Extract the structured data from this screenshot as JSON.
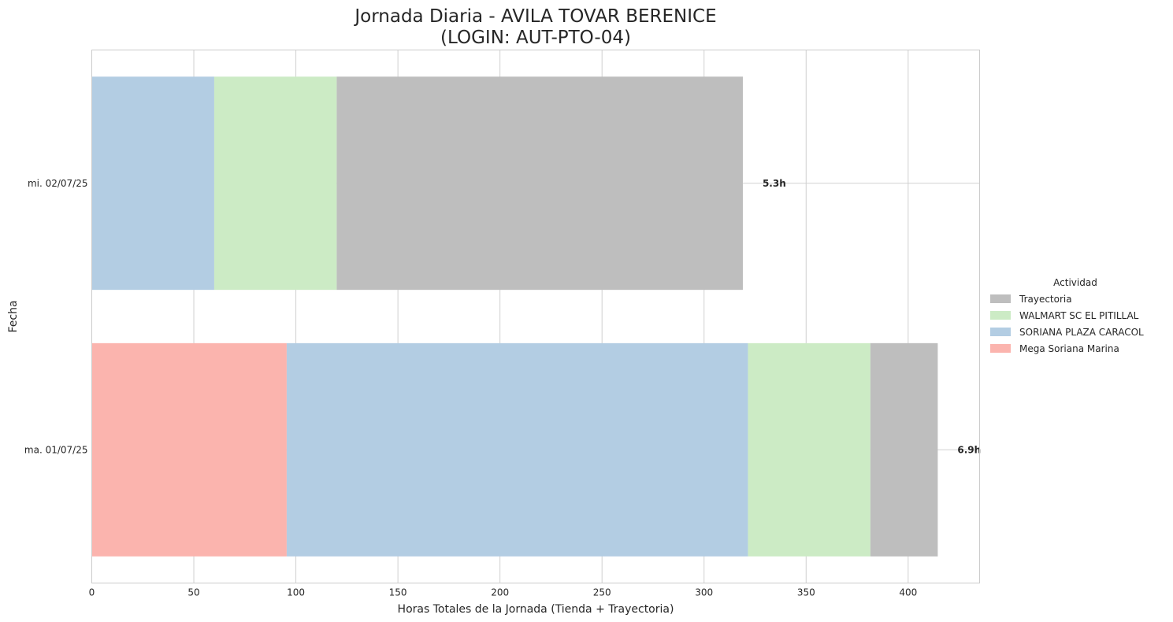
{
  "chart_data": {
    "type": "bar",
    "orientation": "horizontal",
    "stacked": true,
    "title": [
      "Jornada Diaria - AVILA TOVAR BERENICE",
      "(LOGIN: AUT-PTO-04)"
    ],
    "xlabel": "Horas Totales de la Jornada (Tienda + Trayectoria)",
    "ylabel": "Fecha",
    "xlim": [
      0,
      435
    ],
    "xticks": [
      0,
      50,
      100,
      150,
      200,
      250,
      300,
      350,
      400
    ],
    "grid": true,
    "categories": [
      "ma. 01/07/25",
      "mi. 02/07/25"
    ],
    "series": [
      {
        "name": "Mega Soriana Marina",
        "color": "#fbb4ae",
        "values": [
          95.5,
          0
        ]
      },
      {
        "name": "SORIANA PLAZA CARACOL",
        "color": "#b3cde3",
        "values": [
          226,
          60
        ]
      },
      {
        "name": "WALMART SC EL PITILLAL",
        "color": "#ccebc5",
        "values": [
          60,
          60
        ]
      },
      {
        "name": "Trayectoria",
        "color": "#bebebe",
        "values": [
          33,
          199
        ]
      }
    ],
    "segment_order": [
      [
        "Mega Soriana Marina",
        "SORIANA PLAZA CARACOL",
        "WALMART SC EL PITILLAL",
        "Trayectoria"
      ],
      [
        "SORIANA PLAZA CARACOL",
        "WALMART SC EL PITILLAL",
        "Trayectoria"
      ]
    ],
    "totals": [
      "6.9h",
      "5.3h"
    ],
    "legend": {
      "title": "Actividad",
      "position": "center-right",
      "entries": [
        "Trayectoria",
        "WALMART SC EL PITILLAL",
        "SORIANA PLAZA CARACOL",
        "Mega Soriana Marina"
      ]
    }
  }
}
